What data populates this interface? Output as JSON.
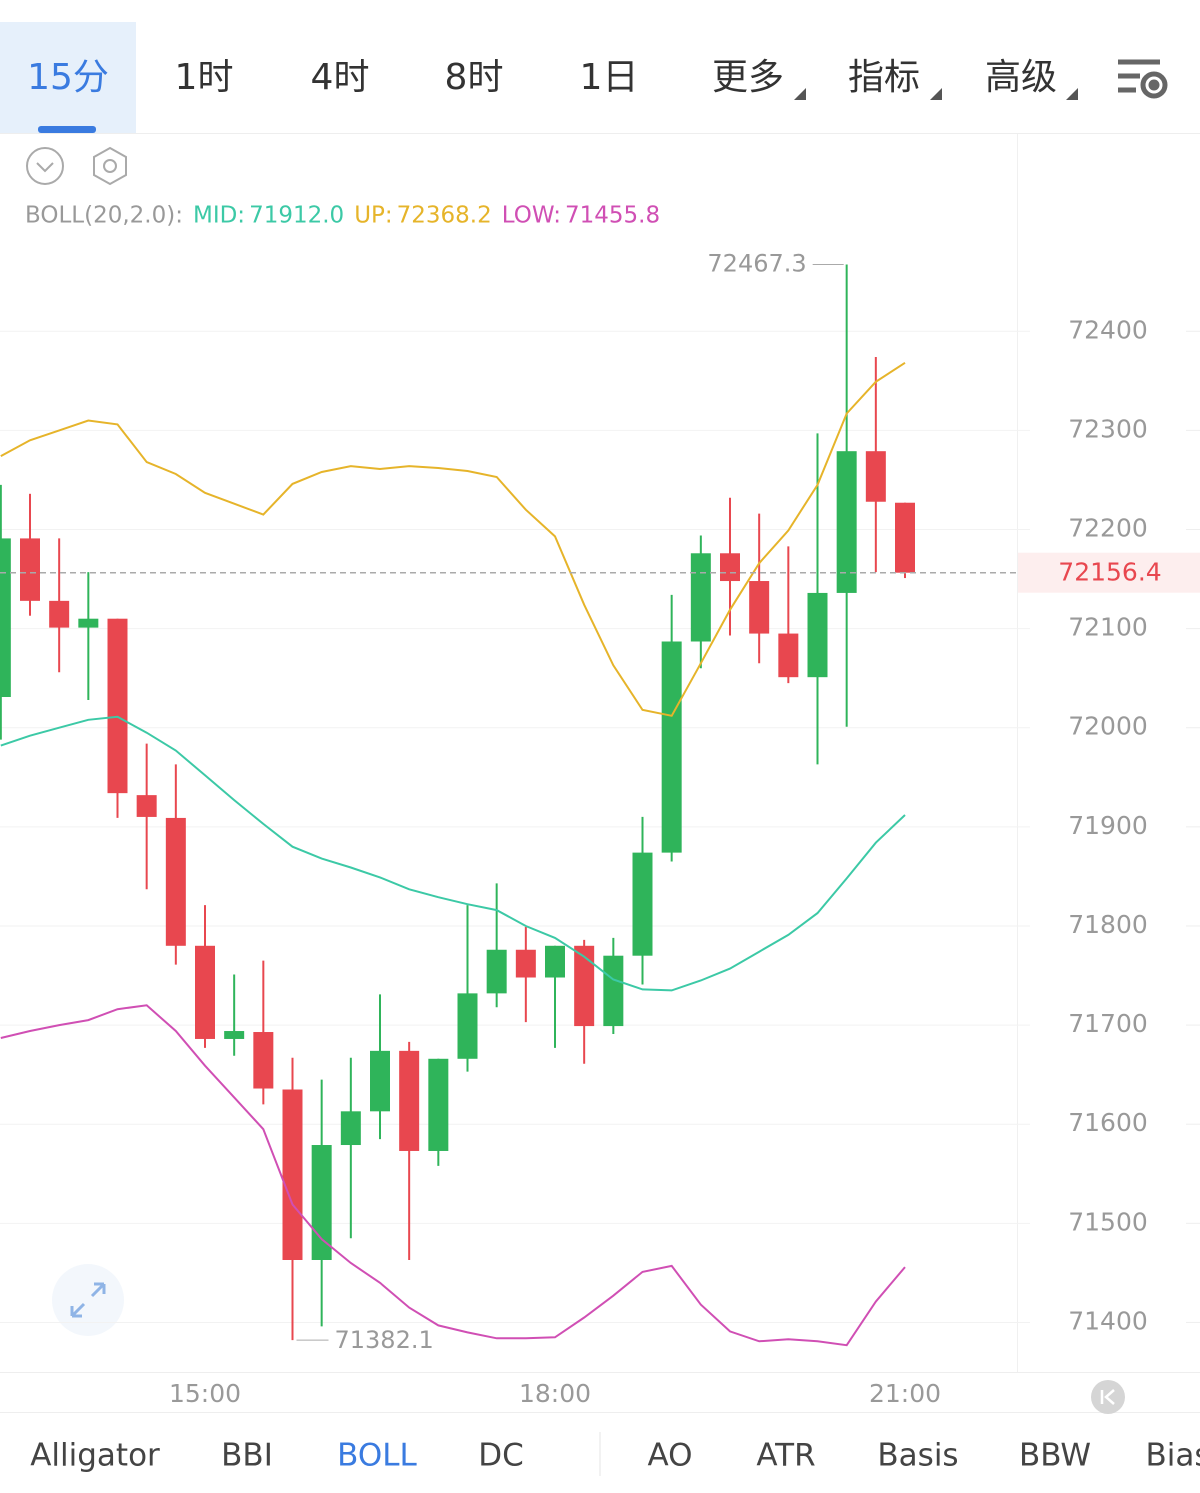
{
  "tabs": [
    "15分",
    "1时",
    "4时",
    "8时",
    "1日",
    "更多",
    "指标",
    "高级"
  ],
  "indicators": [
    "Alligator",
    "BBI",
    "BOLL",
    "DC",
    "AO",
    "ATR",
    "Basis",
    "BBW",
    "Bias"
  ],
  "chart_data": {
    "type": "candlestick",
    "indicator_label": "BOLL(20,2.0):",
    "categories": [
      null,
      null,
      null,
      null,
      null,
      null,
      null,
      "15:00",
      null,
      null,
      null,
      null,
      null,
      null,
      null,
      null,
      null,
      null,
      null,
      "18:00",
      null,
      null,
      null,
      null,
      null,
      null,
      null,
      null,
      null,
      null,
      null,
      "21:00"
    ],
    "open": [
      72031,
      72191,
      72128,
      72101,
      72110,
      71932,
      71909,
      71780,
      71686,
      71693,
      71635,
      71463,
      71579,
      71613,
      71674,
      71573,
      71666,
      71732,
      71776,
      71748,
      71780,
      71699,
      71770,
      71874,
      72087,
      72176,
      72148,
      72095,
      72051,
      72136,
      72279,
      72227
    ],
    "high": [
      72245,
      72236,
      72191,
      72157,
      72110,
      71984,
      71963,
      71821,
      71751,
      71765,
      71667,
      71645,
      71667,
      71731,
      71683,
      71666,
      71821,
      71843,
      71799,
      71780,
      71786,
      71788,
      71910,
      72134,
      72194,
      72232,
      72216,
      72183,
      72297,
      72467.3,
      72374,
      72227
    ],
    "low": [
      71988,
      72113,
      72056,
      72028,
      71909,
      71837,
      71761,
      71677,
      71669,
      71620,
      71382.1,
      71396,
      71485,
      71585,
      71463,
      71558,
      71653,
      71718,
      71703,
      71677,
      71661,
      71691,
      71741,
      71865,
      72060,
      72093,
      72065,
      72045,
      71963,
      72001,
      72157,
      72151
    ],
    "close": [
      72191,
      72128,
      72101,
      72110,
      71934,
      71910,
      71780,
      71686,
      71694,
      71636,
      71463,
      71579,
      71613,
      71674,
      71573,
      71666,
      71732,
      71776,
      71748,
      71780,
      71699,
      71770,
      71874,
      72087,
      72176,
      72148,
      72095,
      72051,
      72136,
      72279,
      72228,
      72156.4
    ],
    "up_color": "#2fb45a",
    "down_color": "#e8474f",
    "series": [
      {
        "name": "MID:",
        "color": "#3cc9a6",
        "values": [
          71982,
          71992,
          72000,
          72008,
          72011,
          71995,
          71977,
          71952,
          71927,
          71903,
          71880,
          71868,
          71859,
          71849,
          71837,
          71829,
          71822,
          71816,
          71800,
          71788,
          71769,
          71746,
          71736,
          71735,
          71745,
          71757,
          71774,
          71791,
          71813,
          71848,
          71884,
          71912
        ]
      },
      {
        "name": "UP:",
        "color": "#e6b42a",
        "values": [
          72274,
          72290,
          72300,
          72310,
          72306,
          72268,
          72256,
          72237,
          72226,
          72215,
          72246,
          72258,
          72264,
          72261,
          72264,
          72262,
          72259,
          72253,
          72220,
          72193,
          72124,
          72063,
          72018,
          72012,
          72065,
          72119,
          72166,
          72199,
          72245,
          72317,
          72349,
          72368.2
        ]
      },
      {
        "name": "LOW:",
        "color": "#d04fb4",
        "values": [
          71687,
          71694,
          71700,
          71705,
          71716,
          71720,
          71694,
          71659,
          71627,
          71595,
          71519,
          71484,
          71460,
          71440,
          71415,
          71397,
          71390,
          71384,
          71384,
          71385,
          71405,
          71427,
          71451,
          71457,
          71418,
          71391,
          71381,
          71383,
          71381,
          71377,
          71421,
          71455.8
        ]
      }
    ],
    "legend_values": [
      "71912.0",
      "72368.2",
      "71455.8"
    ],
    "ylim": [
      71350,
      72598
    ],
    "yticks": [
      71400,
      71500,
      71600,
      71700,
      71800,
      71900,
      72000,
      72100,
      72200,
      72300,
      72400
    ],
    "grid": true
  }
}
